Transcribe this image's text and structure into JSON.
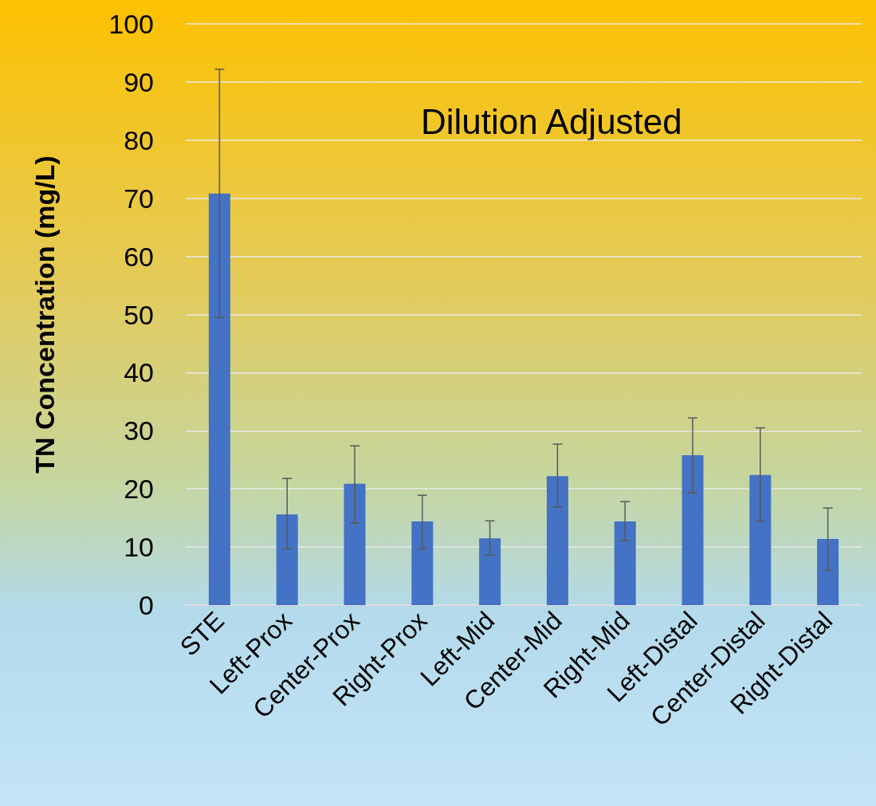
{
  "chart_data": {
    "type": "bar",
    "ylabel": "TN Concentration (mg/L)",
    "annotations": [
      "Dilution Adjusted"
    ],
    "categories": [
      "STE",
      "Left-Prox",
      "Center-Prox",
      "Right-Prox",
      "Left-Mid",
      "Center-Mid",
      "Right-Mid",
      "Left-Distal",
      "Center-Distal",
      "Right-Distal"
    ],
    "values": [
      70.8,
      15.6,
      20.9,
      14.4,
      11.5,
      22.2,
      14.4,
      25.8,
      22.4,
      11.4
    ],
    "errors": [
      [
        49.5,
        92.2
      ],
      [
        9.7,
        21.8
      ],
      [
        14.1,
        27.4
      ],
      [
        9.7,
        18.9
      ],
      [
        8.6,
        14.5
      ],
      [
        16.9,
        27.7
      ],
      [
        11.1,
        17.8
      ],
      [
        19.3,
        32.2
      ],
      [
        14.4,
        30.5
      ],
      [
        6.0,
        16.7
      ]
    ],
    "color": "#4472c4",
    "ylim": [
      0,
      100
    ],
    "yticks": [
      0,
      10,
      20,
      30,
      40,
      50,
      60,
      70,
      80,
      90,
      100
    ],
    "grid": "y"
  }
}
